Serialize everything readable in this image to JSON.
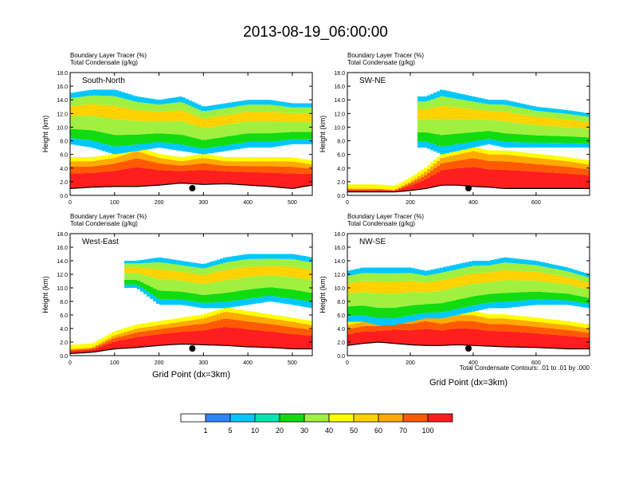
{
  "title": "2013-08-19_06:00:00",
  "panels": [
    {
      "subtitle_1": "Boundary Layer Tracer   (%)",
      "subtitle_2": "Total Condensate   (g/kg)",
      "section": "South-North",
      "xlim": [
        0,
        545
      ],
      "xticks": [
        0,
        100,
        200,
        300,
        400,
        500
      ],
      "marker_x": 275
    },
    {
      "subtitle_1": "Boundary Layer Tracer   (%)",
      "subtitle_2": "Total Condensate   (g/kg)",
      "section": "SW-NE",
      "xlim": [
        0,
        770
      ],
      "xticks": [
        0,
        200,
        400,
        600
      ],
      "marker_x": 385
    },
    {
      "subtitle_1": "Boundary Layer Tracer   (%)",
      "subtitle_2": "Total Condensate   (g/kg)",
      "section": "West-East",
      "xlim": [
        0,
        545
      ],
      "xticks": [
        0,
        100,
        200,
        300,
        400,
        500
      ],
      "marker_x": 275
    },
    {
      "subtitle_1": "Boundary Layer Tracer   (%)",
      "subtitle_2": "Total Condensate   (g/kg)",
      "section": "NW-SE",
      "xlim": [
        0,
        770
      ],
      "xticks": [
        0,
        200,
        400,
        600
      ],
      "marker_x": 385
    }
  ],
  "axes": {
    "ylabel": "Height (km)",
    "xlabel": "Grid Point (dx=3km)",
    "ylim": [
      0,
      18
    ],
    "yticks": [
      "0.0",
      "2.0",
      "4.0",
      "6.0",
      "8.0",
      "10.0",
      "12.0",
      "14.0",
      "16.0",
      "18.0"
    ]
  },
  "contour_note": "Total Condensate Contours: .01 to .01 by .000",
  "colorbar": {
    "colors": [
      "#ffffff",
      "#2d84ff",
      "#00c8ff",
      "#00e6b4",
      "#10dc10",
      "#a0f040",
      "#ffff00",
      "#ffd200",
      "#ffaa00",
      "#ff5a00",
      "#ff1e1e"
    ],
    "labels": [
      "1",
      "5",
      "10",
      "20",
      "30",
      "40",
      "50",
      "60",
      "70",
      "100"
    ]
  },
  "chart_data": {
    "type": "heatmap",
    "variable": "Boundary Layer Tracer (%)",
    "contour_variable": "Total Condensate (g/kg)",
    "contour_levels": [
      0.01
    ],
    "levels": [
      1,
      5,
      10,
      20,
      30,
      40,
      50,
      60,
      70,
      100
    ],
    "panels": [
      {
        "section": "South-North",
        "xlim": [
          0,
          545
        ],
        "ylim": [
          0,
          18
        ],
        "profile_x": [
          0,
          50,
          100,
          150,
          200,
          250,
          300,
          350,
          400,
          450,
          500,
          545
        ],
        "cloud_base_km": [
          7.5,
          7.0,
          6.0,
          6.5,
          7.0,
          6.5,
          6.0,
          6.5,
          7.0,
          7.0,
          7.5,
          7.5
        ],
        "cloud_top_km": [
          15.0,
          15.5,
          15.5,
          14.5,
          14.0,
          14.5,
          13.0,
          13.5,
          14.0,
          14.0,
          13.5,
          13.5
        ],
        "bl_top_km": [
          5.0,
          5.0,
          5.5,
          6.5,
          5.5,
          5.0,
          5.5,
          5.0,
          5.0,
          5.0,
          5.0,
          4.5
        ],
        "surface_km": [
          1.0,
          1.2,
          1.3,
          1.3,
          1.5,
          1.8,
          1.6,
          1.7,
          1.5,
          1.3,
          1.0,
          1.5
        ]
      },
      {
        "section": "SW-NE",
        "xlim": [
          0,
          770
        ],
        "ylim": [
          0,
          18
        ],
        "profile_x": [
          0,
          100,
          150,
          200,
          250,
          300,
          350,
          400,
          450,
          500,
          600,
          700,
          770
        ],
        "cloud_base_km": [
          null,
          null,
          null,
          null,
          7.0,
          6.0,
          6.5,
          7.0,
          7.5,
          7.0,
          7.0,
          7.0,
          7.0
        ],
        "cloud_top_km": [
          null,
          null,
          null,
          null,
          14.5,
          15.5,
          15.0,
          14.5,
          14.0,
          14.0,
          13.0,
          12.5,
          12.0
        ],
        "bl_top_km": [
          1.0,
          1.0,
          0.8,
          2.0,
          3.5,
          5.5,
          6.0,
          6.5,
          6.0,
          6.0,
          5.5,
          5.0,
          4.5
        ],
        "surface_km": [
          0.5,
          0.5,
          0.5,
          0.7,
          1.0,
          1.5,
          1.5,
          1.3,
          1.2,
          1.0,
          1.0,
          1.0,
          1.0
        ]
      },
      {
        "section": "West-East",
        "xlim": [
          0,
          545
        ],
        "ylim": [
          0,
          18
        ],
        "profile_x": [
          0,
          50,
          100,
          150,
          200,
          250,
          300,
          350,
          400,
          450,
          500,
          545
        ],
        "cloud_base_km": [
          null,
          null,
          null,
          10.0,
          7.5,
          7.5,
          7.0,
          7.0,
          7.5,
          8.0,
          7.5,
          7.0
        ],
        "cloud_top_km": [
          null,
          null,
          null,
          14.0,
          14.5,
          14.0,
          13.5,
          14.5,
          15.0,
          15.0,
          15.0,
          14.5
        ],
        "bl_top_km": [
          1.0,
          1.2,
          3.0,
          4.0,
          4.5,
          5.0,
          5.5,
          6.5,
          6.0,
          5.5,
          5.0,
          4.5
        ],
        "surface_km": [
          0.3,
          0.5,
          1.0,
          1.2,
          1.5,
          1.7,
          1.6,
          1.5,
          1.3,
          1.2,
          1.0,
          1.0
        ]
      },
      {
        "section": "NW-SE",
        "xlim": [
          0,
          770
        ],
        "ylim": [
          0,
          18
        ],
        "profile_x": [
          0,
          50,
          100,
          150,
          200,
          250,
          300,
          350,
          400,
          450,
          500,
          600,
          700,
          770
        ],
        "cloud_base_km": [
          5.0,
          5.0,
          4.5,
          4.5,
          5.0,
          5.5,
          5.5,
          6.0,
          6.5,
          7.0,
          7.0,
          7.5,
          7.5,
          7.0
        ],
        "cloud_top_km": [
          12.5,
          13.0,
          13.0,
          13.0,
          13.0,
          12.5,
          13.0,
          13.5,
          14.0,
          14.0,
          14.5,
          14.0,
          13.0,
          12.0
        ],
        "bl_top_km": [
          4.5,
          5.0,
          5.0,
          5.5,
          5.5,
          6.0,
          5.5,
          6.0,
          6.0,
          5.5,
          5.5,
          5.0,
          4.5,
          4.0
        ],
        "surface_km": [
          1.5,
          1.8,
          2.0,
          1.8,
          1.6,
          1.5,
          1.5,
          1.6,
          1.5,
          1.4,
          1.3,
          1.2,
          1.0,
          1.0
        ]
      }
    ]
  }
}
